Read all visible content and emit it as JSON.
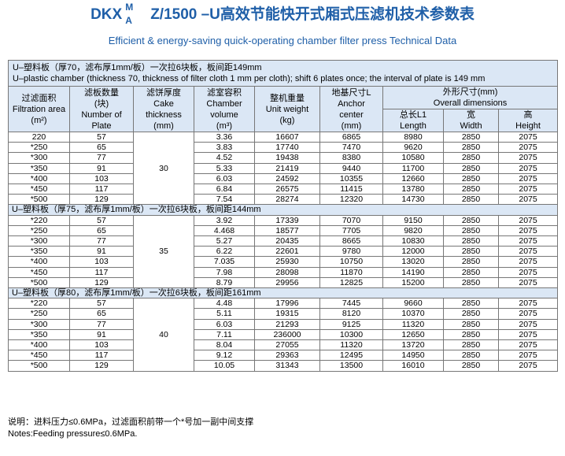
{
  "title": {
    "prefix": "DKX",
    "sup": "M",
    "sub": "A",
    "suffix": "Z/1500 –U高效节能快开式厢式压滤机技术参数表"
  },
  "subtitle": "Efficient & energy-saving quick-operating chamber filter press Technical Data",
  "intro": {
    "line_cn": "U–塑料板（厚70，滤布厚1mm/板）一次拉6块板，板间距149mm",
    "line_en": "U–plastic chamber (thickness 70, thickness of filter cloth 1 mm per cloth); shift 6 plates once; the interval of plate is 149 mm"
  },
  "headers": {
    "area": [
      "过滤面积",
      "Filtration area",
      "(m²)"
    ],
    "plates": [
      "滤板数量",
      "(块)",
      "Number of",
      "Plate"
    ],
    "cake": [
      "滤饼厚度",
      "Cake",
      "thickness",
      "(mm)"
    ],
    "volume": [
      "滤室容积",
      "Chamber",
      "volume",
      "(m³)"
    ],
    "weight": [
      "整机重量",
      "Unit weight",
      "(kg)"
    ],
    "anchor": [
      "地基尺寸L",
      "Anchor",
      "center",
      "(mm)"
    ],
    "overall": [
      "外形尺寸(mm)",
      "Overall  dimensions"
    ],
    "length": [
      "总长L1",
      "Length"
    ],
    "width": [
      "宽",
      "Width"
    ],
    "height": [
      "高",
      "Height"
    ]
  },
  "groups": [
    {
      "label": "",
      "cake": "30",
      "rows": [
        [
          "220",
          "57",
          "3.36",
          "16607",
          "6865",
          "8980",
          "2850",
          "2075"
        ],
        [
          "*250",
          "65",
          "3.83",
          "17740",
          "7470",
          "9620",
          "2850",
          "2075"
        ],
        [
          "*300",
          "77",
          "4.52",
          "19438",
          "8380",
          "10580",
          "2850",
          "2075"
        ],
        [
          "*350",
          "91",
          "5.33",
          "21419",
          "9440",
          "11700",
          "2850",
          "2075"
        ],
        [
          "*400",
          "103",
          "6.03",
          "24592",
          "10355",
          "12660",
          "2850",
          "2075"
        ],
        [
          "*450",
          "117",
          "6.84",
          "26575",
          "11415",
          "13780",
          "2850",
          "2075"
        ],
        [
          "*500",
          "129",
          "7.54",
          "28274",
          "12320",
          "14730",
          "2850",
          "2075"
        ]
      ]
    },
    {
      "label": "U–塑料板（厚75，滤布厚1mm/板）一次拉6块板，板间距144mm",
      "cake": "35",
      "rows": [
        [
          "*220",
          "57",
          "3.92",
          "17339",
          "7070",
          "9150",
          "2850",
          "2075"
        ],
        [
          "*250",
          "65",
          "4.468",
          "18577",
          "7705",
          "9820",
          "2850",
          "2075"
        ],
        [
          "*300",
          "77",
          "5.27",
          "20435",
          "8665",
          "10830",
          "2850",
          "2075"
        ],
        [
          "*350",
          "91",
          "6.22",
          "22601",
          "9780",
          "12000",
          "2850",
          "2075"
        ],
        [
          "*400",
          "103",
          "7.035",
          "25930",
          "10750",
          "13020",
          "2850",
          "2075"
        ],
        [
          "*450",
          "117",
          "7.98",
          "28098",
          "11870",
          "14190",
          "2850",
          "2075"
        ],
        [
          "*500",
          "129",
          "8.79",
          "29956",
          "12825",
          "15200",
          "2850",
          "2075"
        ]
      ]
    },
    {
      "label": "U–塑料板（厚80，滤布厚1mm/板）一次拉6块板，板间距161mm",
      "cake": "40",
      "rows": [
        [
          "*220",
          "57",
          "4.48",
          "17996",
          "7445",
          "9660",
          "2850",
          "2075"
        ],
        [
          "*250",
          "65",
          "5.11",
          "19315",
          "8120",
          "10370",
          "2850",
          "2075"
        ],
        [
          "*300",
          "77",
          "6.03",
          "21293",
          "9125",
          "11320",
          "2850",
          "2075"
        ],
        [
          "*350",
          "91",
          "7.11",
          "236000",
          "10300",
          "12650",
          "2850",
          "2075"
        ],
        [
          "*400",
          "103",
          "8.04",
          "27055",
          "11320",
          "13720",
          "2850",
          "2075"
        ],
        [
          "*450",
          "117",
          "9.12",
          "29363",
          "12495",
          "14950",
          "2850",
          "2075"
        ],
        [
          "*500",
          "129",
          "10.05",
          "31343",
          "13500",
          "16010",
          "2850",
          "2075"
        ]
      ]
    }
  ],
  "notes": {
    "cn": "说明：进料压力≤0.6MPa，过滤面积前带一个*号加一副中间支撑",
    "en": "Notes:Feeding pressure≤0.6MPa."
  },
  "colors": {
    "title": "#1f5fa8",
    "header_bg": "#dbe7f5",
    "border": "#777777"
  }
}
